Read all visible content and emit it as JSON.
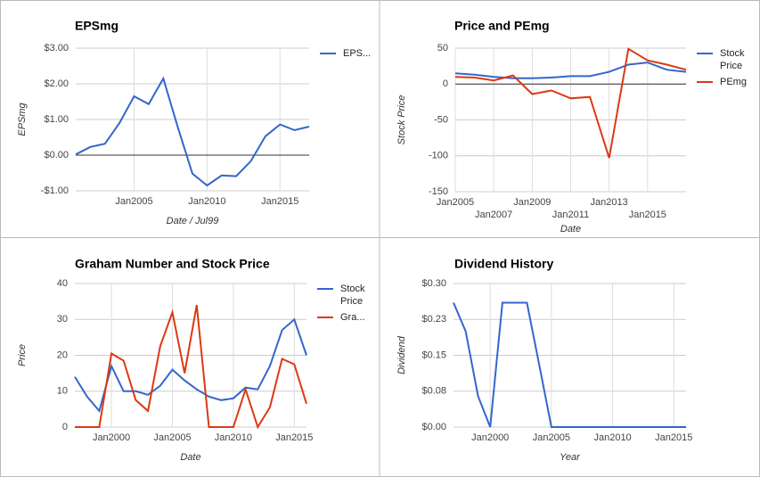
{
  "chart_data": [
    {
      "type": "line",
      "title": "EPSmg",
      "x_label": "Date / Jul99",
      "y_label": "EPSmg",
      "x": [
        2001,
        2002,
        2003,
        2004,
        2005,
        2006,
        2007,
        2008,
        2009,
        2010,
        2011,
        2012,
        2013,
        2014,
        2015,
        2016,
        2017
      ],
      "series": [
        {
          "name": "EPS...",
          "color": "#3366cc",
          "values": [
            0.02,
            0.23,
            0.32,
            0.9,
            1.65,
            1.43,
            2.15,
            0.78,
            -0.52,
            -0.85,
            -0.57,
            -0.59,
            -0.17,
            0.53,
            0.86,
            0.7,
            0.8
          ]
        }
      ],
      "xlim": [
        2001,
        2017
      ],
      "xticks": [
        {
          "value": 2005,
          "label": "Jan2005"
        },
        {
          "value": 2010,
          "label": "Jan2010"
        },
        {
          "value": 2015,
          "label": "Jan2015"
        }
      ],
      "ylim": [
        -1,
        3
      ],
      "yticks": [
        {
          "value": 3,
          "label": "$3.00"
        },
        {
          "value": 2,
          "label": "$2.00"
        },
        {
          "value": 1,
          "label": "$1.00"
        },
        {
          "value": 0,
          "label": "$0.00"
        },
        {
          "value": -1,
          "label": "-$1.00"
        }
      ],
      "grid": true,
      "zero_line": true,
      "legend": "right"
    },
    {
      "type": "line",
      "title": "Price and PEmg",
      "x_label": "Date",
      "y_label": "Stock Price",
      "x": [
        2005,
        2006,
        2007,
        2008,
        2009,
        2010,
        2011,
        2012,
        2013,
        2014,
        2015,
        2016,
        2017
      ],
      "series": [
        {
          "name": "Stock Price",
          "color": "#3366cc",
          "values": [
            15,
            13,
            10,
            8,
            8,
            9,
            11,
            11,
            17,
            27,
            30,
            20,
            17
          ]
        },
        {
          "name": "PEmg",
          "color": "#dc3912",
          "values": [
            10,
            9,
            5,
            12,
            -14,
            -9,
            -20,
            -18,
            -103,
            49,
            33,
            27,
            20
          ]
        }
      ],
      "xlim": [
        2005,
        2017
      ],
      "xticks": [
        {
          "value": 2005,
          "label": "Jan2005"
        },
        {
          "value": 2007,
          "label": "Jan2007"
        },
        {
          "value": 2009,
          "label": "Jan2009"
        },
        {
          "value": 2011,
          "label": "Jan2011"
        },
        {
          "value": 2013,
          "label": "Jan2013"
        },
        {
          "value": 2015,
          "label": "Jan2015"
        }
      ],
      "ylim": [
        -150,
        50
      ],
      "yticks": [
        50,
        0,
        -50,
        -100,
        -150
      ],
      "grid": true,
      "zero_line": true,
      "legend": "right"
    },
    {
      "type": "line",
      "title": "Graham Number and Stock Price",
      "x_label": "Date",
      "y_label": "Price",
      "x": [
        1997,
        1998,
        1999,
        2000,
        2001,
        2002,
        2003,
        2004,
        2005,
        2006,
        2007,
        2008,
        2009,
        2010,
        2011,
        2012,
        2013,
        2014,
        2015,
        2016
      ],
      "series": [
        {
          "name": "Stock Price",
          "color": "#3366cc",
          "values": [
            14,
            8.5,
            4.5,
            17,
            10,
            10,
            9,
            11.5,
            16,
            13,
            10.5,
            8.5,
            7.5,
            8,
            11,
            10.5,
            17,
            27,
            30,
            20
          ]
        },
        {
          "name": "Gra...",
          "color": "#dc3912",
          "values": [
            0,
            0,
            0,
            20.5,
            18.5,
            7.5,
            4.5,
            22.5,
            32,
            15,
            34,
            0,
            0,
            0,
            10.5,
            0,
            5.5,
            19,
            17.5,
            6.5
          ]
        }
      ],
      "xlim": [
        1997,
        2016
      ],
      "xticks": [
        {
          "value": 2000,
          "label": "Jan2000"
        },
        {
          "value": 2005,
          "label": "Jan2005"
        },
        {
          "value": 2010,
          "label": "Jan2010"
        },
        {
          "value": 2015,
          "label": "Jan2015"
        }
      ],
      "ylim": [
        0,
        40
      ],
      "yticks": [
        40,
        30,
        20,
        10,
        0
      ],
      "grid": true,
      "zero_line": false,
      "legend": "right"
    },
    {
      "type": "line",
      "title": "Dividend History",
      "x_label": "Year",
      "y_label": "Dividend",
      "x": [
        1997,
        1998,
        1999,
        2000,
        2001,
        2002,
        2003,
        2004,
        2005,
        2006,
        2007,
        2008,
        2009,
        2010,
        2011,
        2012,
        2013,
        2014,
        2015,
        2016
      ],
      "series": [
        {
          "color": "#3366cc",
          "values": [
            0.26,
            0.2,
            0.065,
            0,
            0.26,
            0.26,
            0.26,
            0.13,
            0,
            0,
            0,
            0,
            0,
            0,
            0,
            0,
            0,
            0,
            0,
            0
          ]
        }
      ],
      "xlim": [
        1997,
        2016
      ],
      "xticks": [
        {
          "value": 2000,
          "label": "Jan2000"
        },
        {
          "value": 2005,
          "label": "Jan2005"
        },
        {
          "value": 2010,
          "label": "Jan2010"
        },
        {
          "value": 2015,
          "label": "Jan2015"
        }
      ],
      "ylim": [
        0,
        0.3
      ],
      "yticks": [
        {
          "value": 0.3,
          "label": "$0.30"
        },
        {
          "value": 0.225,
          "label": "$0.23"
        },
        {
          "value": 0.15,
          "label": "$0.15"
        },
        {
          "value": 0.075,
          "label": "$0.08"
        },
        {
          "value": 0,
          "label": "$0.00"
        }
      ],
      "grid": true,
      "zero_line": false
    }
  ]
}
